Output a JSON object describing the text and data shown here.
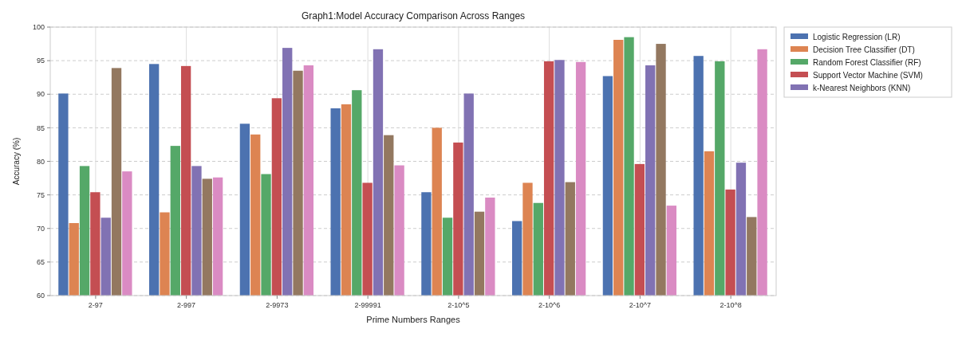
{
  "chart_data": {
    "type": "bar",
    "title": "Graph1:Model Accuracy Comparison Across Ranges",
    "xlabel": "Prime Numbers Ranges",
    "ylabel": "Accuracy (%)",
    "categories": [
      "2-97",
      "2-997",
      "2-9973",
      "2-99991",
      "2-10^5",
      "2-10^6",
      "2-10^7",
      "2-10^8"
    ],
    "series": [
      {
        "name": "Logistic Regression (LR)",
        "color": "#4c72b0",
        "values": [
          90.1,
          94.5,
          85.6,
          87.9,
          75.4,
          71.1,
          92.7,
          95.7
        ]
      },
      {
        "name": "Decision Tree Classifier (DT)",
        "color": "#dd8452",
        "values": [
          70.8,
          72.4,
          84.0,
          88.5,
          85.0,
          76.8,
          98.1,
          81.5
        ]
      },
      {
        "name": "Random Forest Classifier (RF)",
        "color": "#55a868",
        "values": [
          79.3,
          82.3,
          78.1,
          90.6,
          71.6,
          73.8,
          98.5,
          94.9
        ]
      },
      {
        "name": "Support Vector Machine (SVM)",
        "color": "#c44e52",
        "values": [
          75.4,
          94.2,
          89.4,
          76.8,
          82.8,
          94.9,
          79.6,
          75.8
        ]
      },
      {
        "name": "k-Nearest Neighbors (KNN)",
        "color": "#8172b3",
        "values": [
          71.6,
          79.3,
          96.9,
          96.7,
          90.1,
          95.1,
          94.3,
          79.8
        ]
      },
      {
        "color": "#937860",
        "values": [
          93.9,
          77.4,
          93.5,
          83.9,
          72.5,
          76.9,
          97.5,
          71.7
        ]
      },
      {
        "color": "#da8bc3",
        "values": [
          78.5,
          77.6,
          94.3,
          79.4,
          74.6,
          94.8,
          73.4,
          96.7
        ]
      }
    ],
    "ylim": [
      60,
      100
    ],
    "yticks": [
      60,
      65,
      70,
      75,
      80,
      85,
      90,
      95,
      100
    ],
    "grid": true,
    "legend": "top right"
  }
}
